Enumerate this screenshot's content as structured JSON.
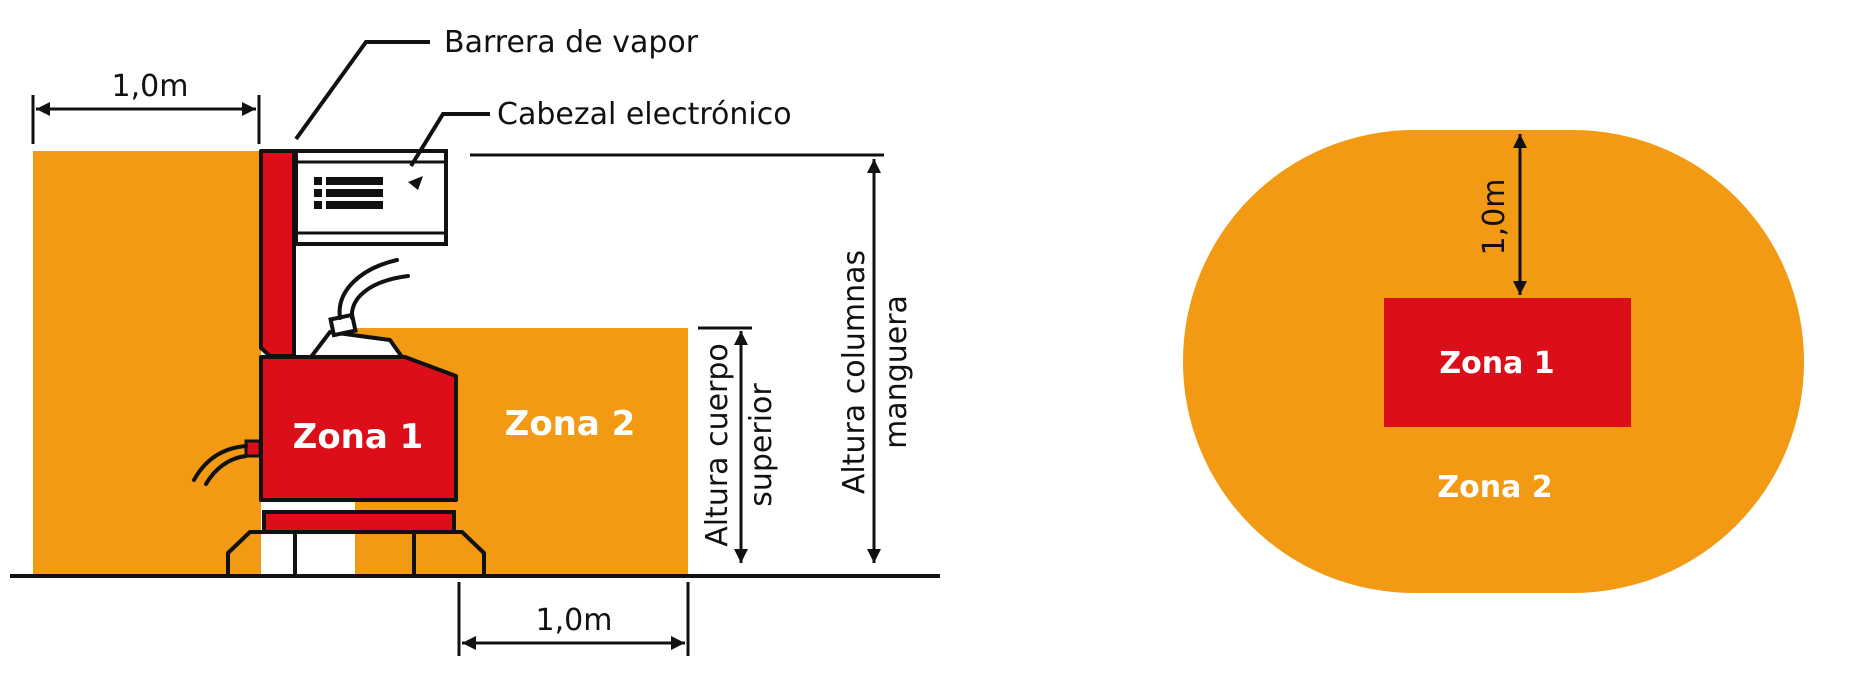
{
  "colors": {
    "zone2_orange": "#F29A13",
    "zone1_red": "#DC0E1A",
    "line": "#111111",
    "label_text": "#ffffff"
  },
  "side_view": {
    "zone1_label": "Zona 1",
    "zone2_label": "Zona 2",
    "vapor_barrier_label": "Barrera de vapor",
    "electronic_head_label": "Cabezal electrónico",
    "top_clearance_label": "1,0m",
    "bottom_clearance_label": "1,0m",
    "upper_body_height_label_line1": "Altura cuerpo",
    "upper_body_height_label_line2": "superior",
    "hose_column_height_label_line1": "Altura columnas",
    "hose_column_height_label_line2": "manguera"
  },
  "plan_view": {
    "zone1_label": "Zona 1",
    "zone2_label": "Zona 2",
    "clearance_label": "1,0m"
  }
}
